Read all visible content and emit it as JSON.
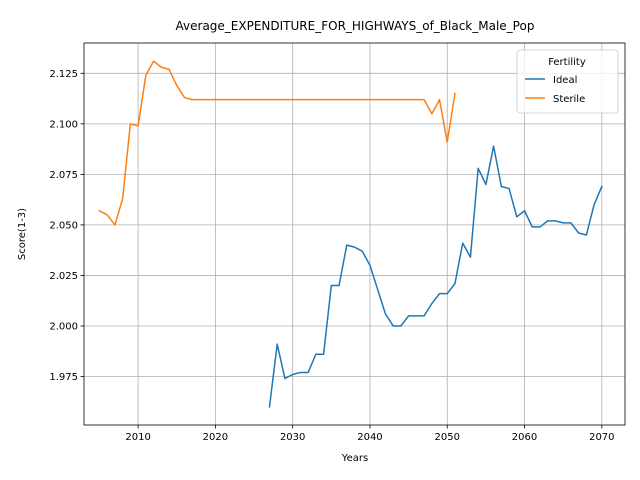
{
  "chart_data": {
    "type": "line",
    "title": "Average_EXPENDITURE_FOR_HIGHWAYS_of_Black_Male_Pop",
    "xlabel": "Years",
    "ylabel": "Score(1-3)",
    "xlim": [
      2003,
      2073
    ],
    "ylim": [
      1.951,
      2.14
    ],
    "x_ticks": [
      2010,
      2020,
      2030,
      2040,
      2050,
      2060,
      2070
    ],
    "y_ticks": [
      1.975,
      2.0,
      2.025,
      2.05,
      2.075,
      2.1,
      2.125
    ],
    "y_tick_labels": [
      "1.975",
      "2.000",
      "2.025",
      "2.050",
      "2.075",
      "2.100",
      "2.125"
    ],
    "grid": true,
    "legend": {
      "title": "Fertility",
      "placement": "top-right"
    },
    "series": [
      {
        "name": "Ideal",
        "color": "#1f77b4",
        "x": [
          2027,
          2028,
          2029,
          2030,
          2031,
          2032,
          2033,
          2034,
          2035,
          2036,
          2037,
          2038,
          2039,
          2040,
          2041,
          2042,
          2043,
          2044,
          2045,
          2046,
          2047,
          2048,
          2049,
          2050,
          2051,
          2052,
          2053,
          2054,
          2055,
          2056,
          2057,
          2058,
          2059,
          2060,
          2061,
          2062,
          2063,
          2064,
          2065,
          2066,
          2067,
          2068,
          2069,
          2070
        ],
        "y": [
          1.96,
          1.991,
          1.974,
          1.976,
          1.977,
          1.977,
          1.986,
          1.986,
          2.02,
          2.02,
          2.04,
          2.039,
          2.037,
          2.03,
          2.018,
          2.006,
          2.0,
          2.0,
          2.005,
          2.005,
          2.005,
          2.011,
          2.016,
          2.016,
          2.021,
          2.041,
          2.034,
          2.078,
          2.07,
          2.089,
          2.069,
          2.068,
          2.054,
          2.057,
          2.049,
          2.049,
          2.052,
          2.052,
          2.051,
          2.051,
          2.046,
          2.045,
          2.06,
          2.069
        ]
      },
      {
        "name": "Sterile",
        "color": "#ff7f0e",
        "x": [
          2005,
          2006,
          2007,
          2008,
          2009,
          2010,
          2011,
          2012,
          2013,
          2014,
          2015,
          2016,
          2017,
          2018,
          2019,
          2020,
          2021,
          2022,
          2023,
          2024,
          2025,
          2026,
          2027,
          2028,
          2029,
          2030,
          2031,
          2032,
          2033,
          2034,
          2035,
          2036,
          2037,
          2038,
          2039,
          2040,
          2041,
          2042,
          2043,
          2044,
          2045,
          2046,
          2047,
          2048,
          2049,
          2050,
          2051
        ],
        "y": [
          2.057,
          2.055,
          2.05,
          2.063,
          2.1,
          2.099,
          2.124,
          2.131,
          2.128,
          2.127,
          2.119,
          2.113,
          2.112,
          2.112,
          2.112,
          2.112,
          2.112,
          2.112,
          2.112,
          2.112,
          2.112,
          2.112,
          2.112,
          2.112,
          2.112,
          2.112,
          2.112,
          2.112,
          2.112,
          2.112,
          2.112,
          2.112,
          2.112,
          2.112,
          2.112,
          2.112,
          2.112,
          2.112,
          2.112,
          2.112,
          2.112,
          2.112,
          2.112,
          2.105,
          2.112,
          2.091,
          2.115
        ]
      }
    ]
  }
}
